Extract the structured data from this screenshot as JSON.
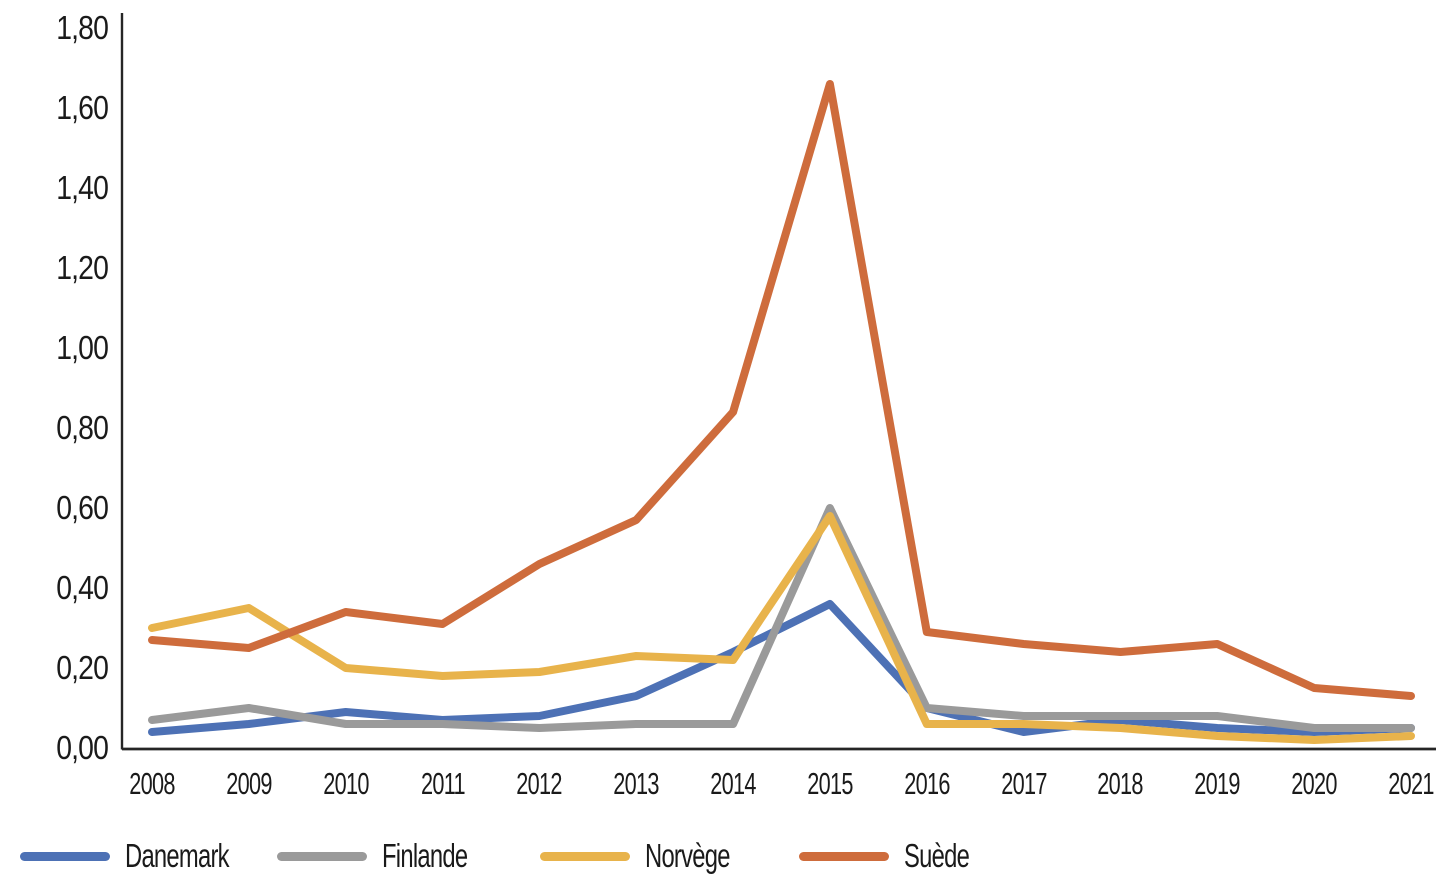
{
  "chart_data": {
    "type": "line",
    "title": "",
    "xlabel": "",
    "ylabel": "",
    "grid": false,
    "legend_position": "bottom",
    "decimal_separator": ",",
    "ylim": [
      0,
      1.8
    ],
    "y_tick_step": 0.2,
    "x_categories": [
      "2008",
      "2009",
      "2010",
      "2011",
      "2012",
      "2013",
      "2014",
      "2015",
      "2016",
      "2017",
      "2018",
      "2019",
      "2020",
      "2021"
    ],
    "y_ticks": [
      {
        "value": 1.8,
        "label": "1,80"
      },
      {
        "value": 1.6,
        "label": "1,60"
      },
      {
        "value": 1.4,
        "label": "1,40"
      },
      {
        "value": 1.2,
        "label": "1,20"
      },
      {
        "value": 1.0,
        "label": "1,00"
      },
      {
        "value": 0.8,
        "label": "0,80"
      },
      {
        "value": 0.6,
        "label": "0,60"
      },
      {
        "value": 0.4,
        "label": "0,40"
      },
      {
        "value": 0.2,
        "label": "0,20"
      },
      {
        "value": 0.0,
        "label": "0,00"
      }
    ],
    "series": [
      {
        "name": "Danemark",
        "color": "#4D71B5",
        "values": [
          0.04,
          0.06,
          0.09,
          0.07,
          0.08,
          0.13,
          0.24,
          0.36,
          0.1,
          0.04,
          0.07,
          0.05,
          0.04,
          0.05
        ]
      },
      {
        "name": "Finlande",
        "color": "#9A9A9A",
        "values": [
          0.07,
          0.1,
          0.06,
          0.06,
          0.05,
          0.06,
          0.06,
          0.6,
          0.1,
          0.08,
          0.08,
          0.08,
          0.05,
          0.05
        ]
      },
      {
        "name": "Norvège",
        "color": "#E8B34B",
        "values": [
          0.3,
          0.35,
          0.2,
          0.18,
          0.19,
          0.23,
          0.22,
          0.58,
          0.06,
          0.06,
          0.05,
          0.03,
          0.02,
          0.03
        ]
      },
      {
        "name": "Suède",
        "color": "#CE6C3C",
        "values": [
          0.27,
          0.25,
          0.34,
          0.31,
          0.46,
          0.57,
          0.84,
          1.66,
          0.29,
          0.26,
          0.24,
          0.26,
          0.15,
          0.13
        ]
      }
    ],
    "axis": {
      "line_color": "#262626",
      "text_color": "#1a1a1a"
    }
  }
}
